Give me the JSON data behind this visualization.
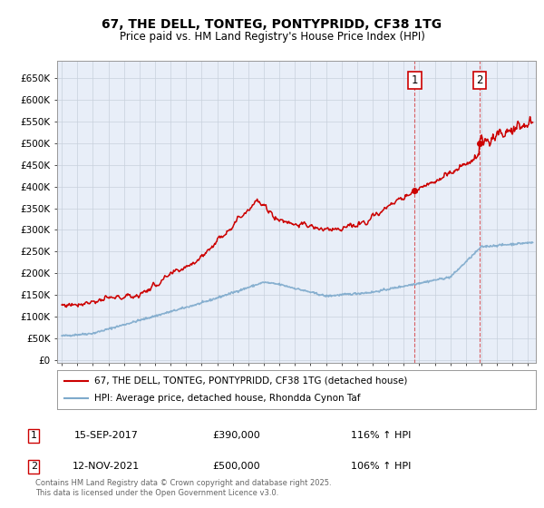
{
  "title": "67, THE DELL, TONTEG, PONTYPRIDD, CF38 1TG",
  "subtitle": "Price paid vs. HM Land Registry's House Price Index (HPI)",
  "yticks": [
    0,
    50000,
    100000,
    150000,
    200000,
    250000,
    300000,
    350000,
    400000,
    450000,
    500000,
    550000,
    600000,
    650000
  ],
  "xlim_start": 1994.7,
  "xlim_end": 2025.5,
  "ylim": [
    -8000,
    690000
  ],
  "background_color": "#ffffff",
  "plot_bg_color": "#e8eef8",
  "grid_color": "#c8d0dc",
  "annotation1": {
    "label": "1",
    "date_x": 2017.71,
    "price": 390000,
    "text": "15-SEP-2017",
    "amount": "£390,000",
    "hpi": "116% ↑ HPI"
  },
  "annotation2": {
    "label": "2",
    "date_x": 2021.87,
    "price": 500000,
    "text": "12-NOV-2021",
    "amount": "£500,000",
    "hpi": "106% ↑ HPI"
  },
  "legend_line1": "67, THE DELL, TONTEG, PONTYPRIDD, CF38 1TG (detached house)",
  "legend_line2": "HPI: Average price, detached house, Rhondda Cynon Taf",
  "footer": "Contains HM Land Registry data © Crown copyright and database right 2025.\nThis data is licensed under the Open Government Licence v3.0.",
  "red_color": "#cc0000",
  "blue_color": "#7eaacc",
  "ann_box_color": "#cc0000"
}
